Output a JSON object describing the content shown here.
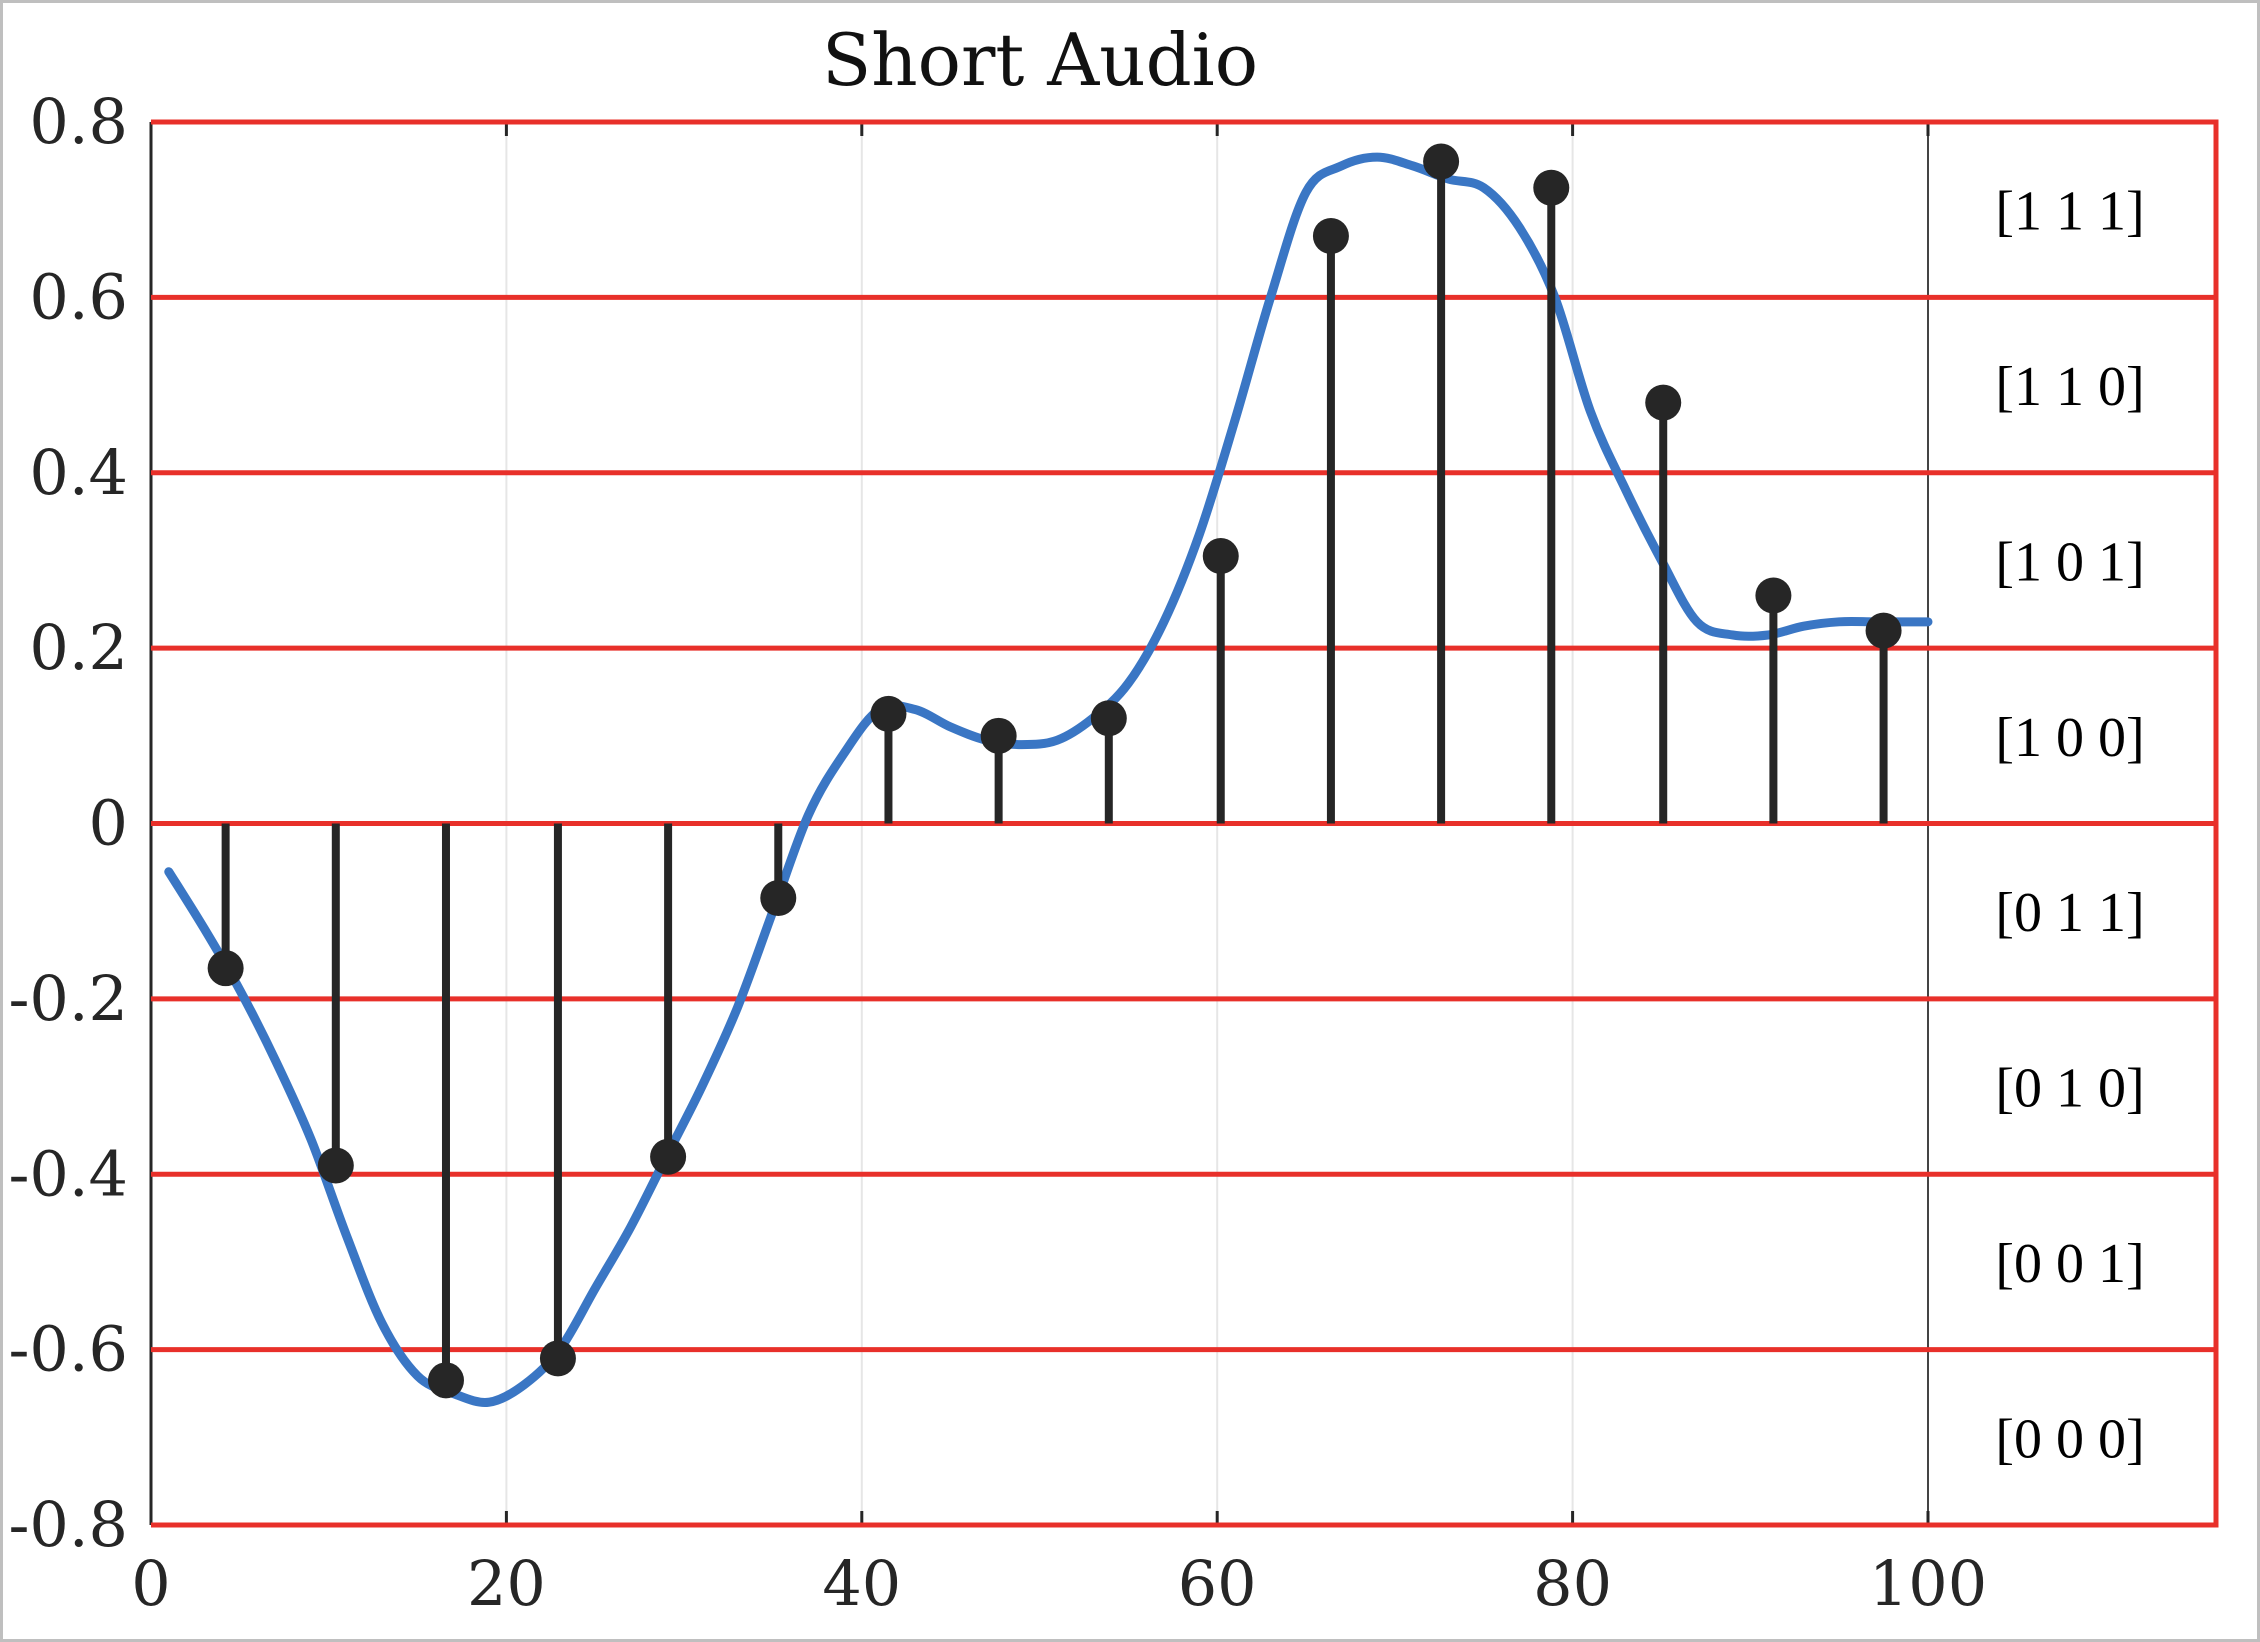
{
  "chart_data": {
    "type": "line",
    "title": "Short Audio",
    "xlabel": "",
    "ylabel": "",
    "xlim": [
      0,
      100
    ],
    "ylim": [
      -0.8,
      0.8
    ],
    "x_ticks": [
      "0",
      "20",
      "40",
      "60",
      "80",
      "100"
    ],
    "x_tick_values": [
      0,
      20,
      40,
      60,
      80,
      100
    ],
    "y_ticks": [
      "0.8",
      "0.6",
      "0.4",
      "0.2",
      "0",
      "-0.2",
      "-0.4",
      "-0.6",
      "-0.8"
    ],
    "y_tick_values": [
      0.8,
      0.6,
      0.4,
      0.2,
      0,
      -0.2,
      -0.4,
      -0.6,
      -0.8
    ],
    "grid": "vertical",
    "colors": {
      "signal": "#3a76c4",
      "levels": "#e8302a",
      "stems": "#262626"
    },
    "signal": {
      "x": [
        1,
        3,
        5,
        7,
        9,
        11,
        13,
        15,
        17,
        19,
        21,
        23,
        25,
        27,
        29,
        31,
        33,
        35,
        37,
        39,
        41,
        43,
        45,
        47,
        49,
        51,
        53,
        55,
        57,
        59,
        61,
        63,
        65,
        67,
        69,
        71,
        73,
        75,
        77,
        79,
        81,
        83,
        85,
        87,
        89,
        91,
        93,
        95,
        97,
        99,
        100
      ],
      "y": [
        -0.055,
        -0.12,
        -0.19,
        -0.27,
        -0.36,
        -0.47,
        -0.57,
        -0.63,
        -0.65,
        -0.66,
        -0.64,
        -0.6,
        -0.53,
        -0.46,
        -0.38,
        -0.3,
        -0.21,
        -0.1,
        0.01,
        0.08,
        0.13,
        0.13,
        0.11,
        0.095,
        0.09,
        0.095,
        0.12,
        0.16,
        0.23,
        0.33,
        0.46,
        0.6,
        0.72,
        0.75,
        0.76,
        0.75,
        0.735,
        0.725,
        0.68,
        0.6,
        0.47,
        0.38,
        0.3,
        0.23,
        0.215,
        0.215,
        0.225,
        0.23,
        0.23,
        0.23,
        0.23
      ]
    },
    "samples": {
      "x": [
        4.2,
        10.4,
        16.6,
        22.9,
        29.1,
        35.3,
        41.5,
        47.7,
        53.9,
        60.2,
        66.4,
        72.6,
        78.8,
        85.1,
        91.3,
        97.5
      ],
      "y": [
        -0.165,
        -0.39,
        -0.635,
        -0.61,
        -0.38,
        -0.085,
        0.125,
        0.1,
        0.12,
        0.305,
        0.67,
        0.755,
        0.725,
        0.48,
        0.26,
        0.22
      ]
    },
    "quantization_levels": [
      -0.8,
      -0.6,
      -0.4,
      -0.2,
      0,
      0.2,
      0.4,
      0.6,
      0.8
    ],
    "codes": [
      "[1 1 1]",
      "[1 1 0]",
      "[1 0 1]",
      "[1 0 0]",
      "[0 1 1]",
      "[0 1 0]",
      "[0 0 1]",
      "[0 0 0]"
    ]
  }
}
